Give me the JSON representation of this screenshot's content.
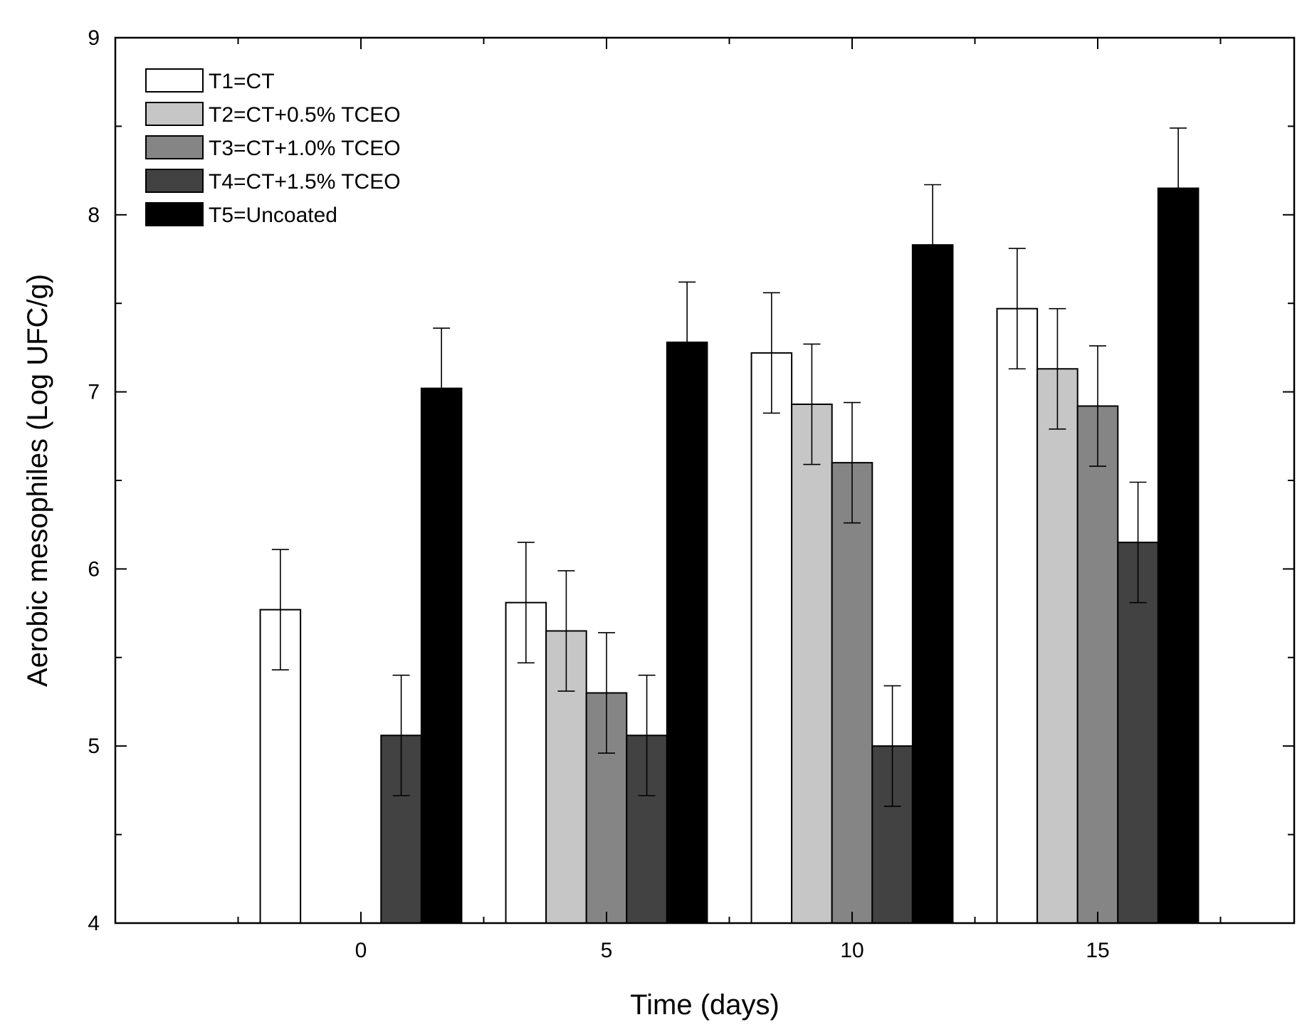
{
  "chart_data": {
    "type": "bar",
    "title": "",
    "xlabel": "Time (days)",
    "ylabel": "Aerobic mesophiles (Log UFC/g)",
    "ylim": [
      4,
      9
    ],
    "xlim": [
      -5,
      19
    ],
    "y_ticks": [
      "4",
      "5",
      "6",
      "7",
      "8",
      "9"
    ],
    "x_ticks": [
      "0",
      "5",
      "10",
      "15"
    ],
    "x_tick_values": [
      0,
      5,
      10,
      15
    ],
    "categories": [
      "0",
      "5",
      "10",
      "15"
    ],
    "category_centers": [
      0,
      5,
      10,
      15
    ],
    "bar_width": 0.82,
    "legend_position": "top-left",
    "series": [
      {
        "name": "T1=CT",
        "color": "#ffffff",
        "values": [
          5.77,
          5.81,
          7.22,
          7.47
        ],
        "errors": [
          0.34,
          0.34,
          0.34,
          0.34
        ]
      },
      {
        "name": "T2=CT+0.5% TCEO",
        "color": "#c6c6c6",
        "values": [
          null,
          5.65,
          6.93,
          7.13
        ],
        "errors": [
          null,
          0.34,
          0.34,
          0.34
        ]
      },
      {
        "name": "T3=CT+1.0% TCEO",
        "color": "#858585",
        "values": [
          null,
          5.3,
          6.6,
          6.92
        ],
        "errors": [
          null,
          0.34,
          0.34,
          0.34
        ]
      },
      {
        "name": "T4=CT+1.5% TCEO",
        "color": "#424242",
        "values": [
          5.06,
          5.06,
          5.0,
          6.15
        ],
        "errors": [
          0.34,
          0.34,
          0.34,
          0.34
        ]
      },
      {
        "name": "T5=Uncoated",
        "color": "#000000",
        "values": [
          7.02,
          7.28,
          7.83,
          8.15
        ],
        "errors": [
          0.34,
          0.34,
          0.34,
          0.34
        ]
      }
    ]
  }
}
